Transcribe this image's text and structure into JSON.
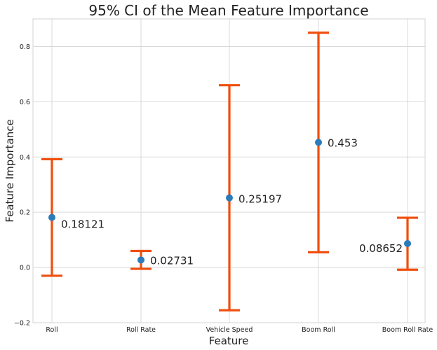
{
  "chart_data": {
    "type": "scatter",
    "title": "95% CI of the Mean Feature Importance",
    "xlabel": "Feature",
    "ylabel": "Feature Importance",
    "categories": [
      "Roll",
      "Roll Rate",
      "Vehicle Speed",
      "Boom Roll",
      "Boom Roll Rate"
    ],
    "values": [
      0.18121,
      0.02731,
      0.25197,
      0.453,
      0.08652
    ],
    "value_labels": [
      "0.18121",
      "0.02731",
      "0.25197",
      "0.453",
      "0.08652"
    ],
    "ci_lower": [
      -0.03,
      -0.005,
      -0.155,
      0.055,
      -0.008
    ],
    "ci_upper": [
      0.392,
      0.06,
      0.66,
      0.85,
      0.18
    ],
    "ylim": [
      -0.2,
      0.9
    ],
    "yticks": [
      -0.2,
      0.0,
      0.2,
      0.4,
      0.6,
      0.8
    ],
    "ytick_labels": [
      "−0.2",
      "0.0",
      "0.2",
      "0.4",
      "0.6",
      "0.8"
    ],
    "grid": true,
    "colors": {
      "point": "#2b7bba",
      "errorbar": "#f04e0c",
      "grid": "#d9d9d9"
    }
  }
}
